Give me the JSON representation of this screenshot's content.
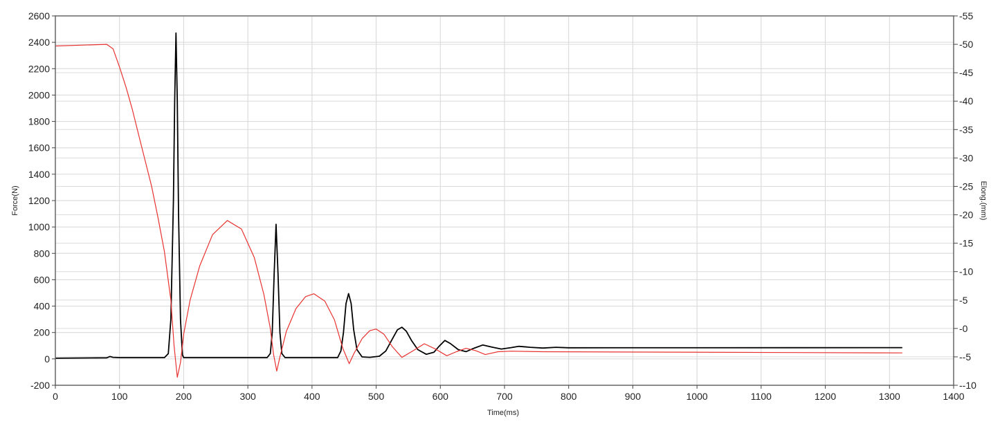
{
  "chart_data": {
    "type": "line",
    "title": "",
    "xlabel": "Time(ms)",
    "ylabel": "Force(N)",
    "y2label": "Elong.(mm)",
    "xlim": [
      0,
      1400
    ],
    "ylim": [
      -200,
      2600
    ],
    "y2lim": [
      -10,
      55
    ],
    "xticks": [
      0,
      100,
      200,
      300,
      400,
      500,
      600,
      700,
      800,
      900,
      1000,
      1100,
      1200,
      1300,
      1400
    ],
    "yticks": [
      -200,
      0,
      200,
      400,
      600,
      800,
      1000,
      1200,
      1400,
      1600,
      1800,
      2000,
      2200,
      2400,
      2600
    ],
    "y2ticks": [
      -10,
      -5,
      0,
      5,
      10,
      15,
      20,
      25,
      30,
      35,
      40,
      45,
      50,
      55
    ],
    "grid": true,
    "series": [
      {
        "axis": "left",
        "color": "#000000",
        "points": [
          [
            0,
            5
          ],
          [
            80,
            8
          ],
          [
            85,
            18
          ],
          [
            90,
            12
          ],
          [
            100,
            10
          ],
          [
            170,
            10
          ],
          [
            176,
            40
          ],
          [
            180,
            300
          ],
          [
            184,
            1200
          ],
          [
            186,
            1950
          ],
          [
            188,
            2470
          ],
          [
            190,
            1950
          ],
          [
            192,
            1100
          ],
          [
            195,
            300
          ],
          [
            198,
            30
          ],
          [
            200,
            10
          ],
          [
            330,
            10
          ],
          [
            335,
            40
          ],
          [
            338,
            200
          ],
          [
            341,
            650
          ],
          [
            344,
            1020
          ],
          [
            347,
            650
          ],
          [
            350,
            200
          ],
          [
            353,
            40
          ],
          [
            358,
            10
          ],
          [
            440,
            10
          ],
          [
            445,
            60
          ],
          [
            449,
            200
          ],
          [
            453,
            420
          ],
          [
            457,
            495
          ],
          [
            461,
            420
          ],
          [
            465,
            220
          ],
          [
            470,
            70
          ],
          [
            478,
            15
          ],
          [
            490,
            12
          ],
          [
            505,
            20
          ],
          [
            515,
            60
          ],
          [
            525,
            150
          ],
          [
            533,
            220
          ],
          [
            540,
            240
          ],
          [
            547,
            210
          ],
          [
            555,
            140
          ],
          [
            565,
            70
          ],
          [
            578,
            35
          ],
          [
            590,
            50
          ],
          [
            598,
            95
          ],
          [
            607,
            140
          ],
          [
            616,
            115
          ],
          [
            628,
            70
          ],
          [
            640,
            55
          ],
          [
            652,
            80
          ],
          [
            666,
            105
          ],
          [
            680,
            90
          ],
          [
            695,
            75
          ],
          [
            710,
            85
          ],
          [
            722,
            95
          ],
          [
            740,
            88
          ],
          [
            760,
            82
          ],
          [
            780,
            88
          ],
          [
            800,
            84
          ],
          [
            1320,
            85
          ]
        ]
      },
      {
        "axis": "right",
        "color": "#e8312f",
        "points": [
          [
            0,
            49.7
          ],
          [
            80,
            50
          ],
          [
            90,
            49.2
          ],
          [
            100,
            46
          ],
          [
            110,
            42.5
          ],
          [
            120,
            38.5
          ],
          [
            130,
            34
          ],
          [
            140,
            29.5
          ],
          [
            150,
            25
          ],
          [
            160,
            19.5
          ],
          [
            170,
            13.5
          ],
          [
            180,
            5
          ],
          [
            185,
            -3
          ],
          [
            190,
            -8.6
          ],
          [
            195,
            -6
          ],
          [
            200,
            -1
          ],
          [
            210,
            5
          ],
          [
            225,
            11
          ],
          [
            245,
            16.5
          ],
          [
            268,
            19
          ],
          [
            290,
            17.5
          ],
          [
            310,
            12.5
          ],
          [
            325,
            6
          ],
          [
            335,
            0
          ],
          [
            340,
            -4.5
          ],
          [
            345,
            -7.5
          ],
          [
            350,
            -5
          ],
          [
            360,
            -0.5
          ],
          [
            375,
            3.5
          ],
          [
            390,
            5.6
          ],
          [
            403,
            6.1
          ],
          [
            420,
            4.8
          ],
          [
            435,
            1.5
          ],
          [
            448,
            -3.5
          ],
          [
            458,
            -6.2
          ],
          [
            465,
            -4.5
          ],
          [
            478,
            -1.8
          ],
          [
            490,
            -0.4
          ],
          [
            500,
            -0.1
          ],
          [
            512,
            -1
          ],
          [
            525,
            -3.2
          ],
          [
            540,
            -5.1
          ],
          [
            555,
            -4.1
          ],
          [
            575,
            -2.7
          ],
          [
            592,
            -3.6
          ],
          [
            610,
            -4.8
          ],
          [
            625,
            -4.1
          ],
          [
            640,
            -3.5
          ],
          [
            655,
            -3.9
          ],
          [
            670,
            -4.6
          ],
          [
            690,
            -4.1
          ],
          [
            710,
            -4.0
          ],
          [
            760,
            -4.1
          ],
          [
            1320,
            -4.3
          ]
        ]
      }
    ]
  }
}
